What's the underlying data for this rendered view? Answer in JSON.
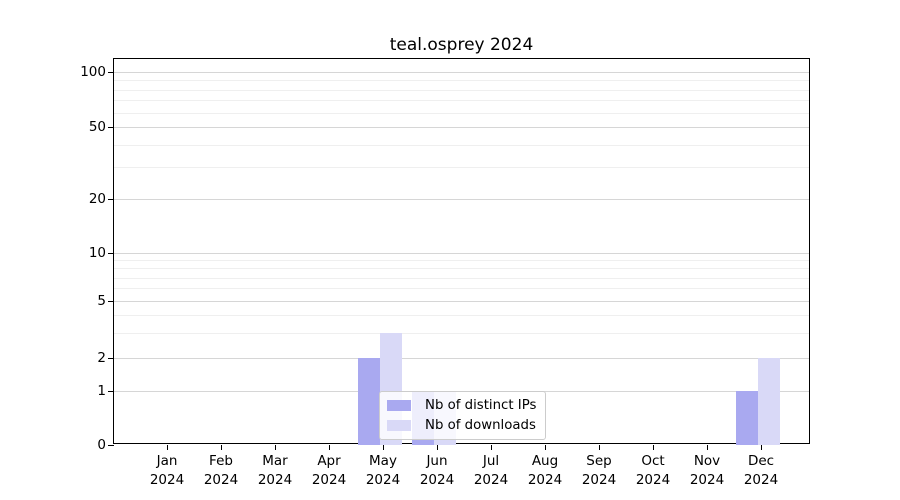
{
  "title": "teal.osprey 2024",
  "colors": {
    "distinct_ips": "#a9a9f0",
    "downloads": "#d9d9f7",
    "grid_major": "#d6d6d6",
    "grid_minor": "#efefef",
    "axis": "#000000"
  },
  "legend": {
    "items": [
      {
        "label": "Nb of distinct IPs"
      },
      {
        "label": "Nb of downloads"
      }
    ]
  },
  "chart_data": {
    "type": "bar",
    "title": "teal.osprey 2024",
    "categories": [
      "Jan",
      "Feb",
      "Mar",
      "Apr",
      "May",
      "Jun",
      "Jul",
      "Aug",
      "Sep",
      "Oct",
      "Nov",
      "Dec"
    ],
    "x_tick_second_line": "2024",
    "series": [
      {
        "name": "Nb of distinct IPs",
        "color": "#a9a9f0",
        "values": [
          0,
          0,
          0,
          0,
          2,
          1,
          0,
          0,
          0,
          0,
          0,
          1
        ]
      },
      {
        "name": "Nb of downloads",
        "color": "#d9d9f7",
        "values": [
          0,
          0,
          0,
          0,
          3,
          1,
          0,
          0,
          0,
          0,
          0,
          2
        ]
      }
    ],
    "xlabel": "",
    "ylabel": "",
    "y_axis": {
      "scale": "symlog",
      "major_ticks": [
        0,
        1,
        2,
        5,
        10,
        20,
        50,
        100
      ],
      "minor_ticks": [
        3,
        4,
        6,
        7,
        8,
        9,
        30,
        40,
        60,
        70,
        80,
        90
      ],
      "range_top": 120
    },
    "grid": true,
    "legend_position": "lower center"
  }
}
